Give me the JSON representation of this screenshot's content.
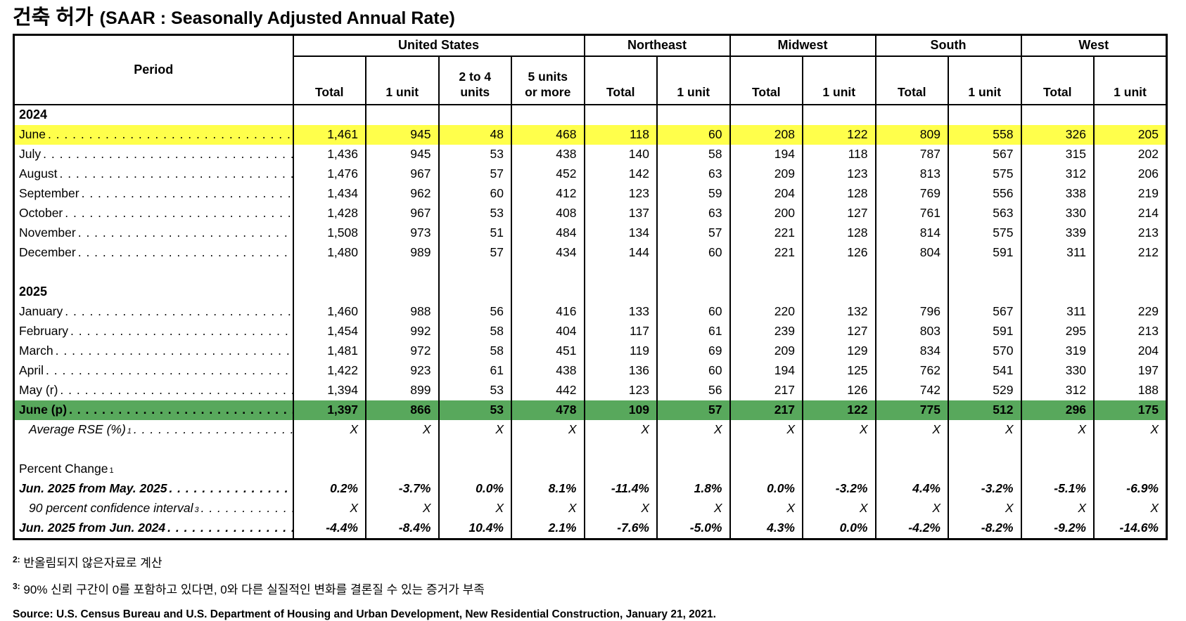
{
  "title": {
    "korean": "건축 허가",
    "english": "(SAAR : Seasonally Adjusted Annual Rate)"
  },
  "colors": {
    "yellow": "#FFFF4B",
    "green": "#58A85C"
  },
  "table": {
    "period_header": "Period",
    "groups": [
      {
        "label": "United States",
        "cols": [
          "Total",
          "1 unit",
          "2 to 4\nunits",
          "5 units\nor more"
        ]
      },
      {
        "label": "Northeast",
        "cols": [
          "Total",
          "1 unit"
        ]
      },
      {
        "label": "Midwest",
        "cols": [
          "Total",
          "1 unit"
        ]
      },
      {
        "label": "South",
        "cols": [
          "Total",
          "1 unit"
        ]
      },
      {
        "label": "West",
        "cols": [
          "Total",
          "1 unit"
        ]
      }
    ],
    "rows": [
      {
        "label": "2024",
        "style": "year",
        "leader": false,
        "values": null
      },
      {
        "label": "June",
        "style": "month",
        "leader": true,
        "highlight": "yellow",
        "values": [
          "1,461",
          "945",
          "48",
          "468",
          "118",
          "60",
          "208",
          "122",
          "809",
          "558",
          "326",
          "205"
        ]
      },
      {
        "label": "July",
        "style": "month",
        "leader": true,
        "values": [
          "1,436",
          "945",
          "53",
          "438",
          "140",
          "58",
          "194",
          "118",
          "787",
          "567",
          "315",
          "202"
        ]
      },
      {
        "label": "August",
        "style": "month",
        "leader": true,
        "values": [
          "1,476",
          "967",
          "57",
          "452",
          "142",
          "63",
          "209",
          "123",
          "813",
          "575",
          "312",
          "206"
        ]
      },
      {
        "label": "September",
        "style": "month",
        "leader": true,
        "values": [
          "1,434",
          "962",
          "60",
          "412",
          "123",
          "59",
          "204",
          "128",
          "769",
          "556",
          "338",
          "219"
        ]
      },
      {
        "label": "October",
        "style": "month",
        "leader": true,
        "values": [
          "1,428",
          "967",
          "53",
          "408",
          "137",
          "63",
          "200",
          "127",
          "761",
          "563",
          "330",
          "214"
        ]
      },
      {
        "label": "November",
        "style": "month",
        "leader": true,
        "values": [
          "1,508",
          "973",
          "51",
          "484",
          "134",
          "57",
          "221",
          "128",
          "814",
          "575",
          "339",
          "213"
        ]
      },
      {
        "label": "December",
        "style": "month",
        "leader": true,
        "values": [
          "1,480",
          "989",
          "57",
          "434",
          "144",
          "60",
          "221",
          "126",
          "804",
          "591",
          "311",
          "212"
        ]
      },
      {
        "label": "",
        "style": "blank",
        "leader": false,
        "values": null
      },
      {
        "label": "2025",
        "style": "year",
        "leader": false,
        "values": null
      },
      {
        "label": "January",
        "style": "month",
        "leader": true,
        "values": [
          "1,460",
          "988",
          "56",
          "416",
          "133",
          "60",
          "220",
          "132",
          "796",
          "567",
          "311",
          "229"
        ]
      },
      {
        "label": "February",
        "style": "month",
        "leader": true,
        "values": [
          "1,454",
          "992",
          "58",
          "404",
          "117",
          "61",
          "239",
          "127",
          "803",
          "591",
          "295",
          "213"
        ]
      },
      {
        "label": "March",
        "style": "month",
        "leader": true,
        "values": [
          "1,481",
          "972",
          "58",
          "451",
          "119",
          "69",
          "209",
          "129",
          "834",
          "570",
          "319",
          "204"
        ]
      },
      {
        "label": "April",
        "style": "month",
        "leader": true,
        "values": [
          "1,422",
          "923",
          "61",
          "438",
          "136",
          "60",
          "194",
          "125",
          "762",
          "541",
          "330",
          "197"
        ]
      },
      {
        "label": "May (r)",
        "style": "month",
        "leader": true,
        "values": [
          "1,394",
          "899",
          "53",
          "442",
          "123",
          "56",
          "217",
          "126",
          "742",
          "529",
          "312",
          "188"
        ]
      },
      {
        "label": "June (p)",
        "style": "green",
        "leader": true,
        "highlight": "green",
        "values": [
          "1,397",
          "866",
          "53",
          "478",
          "109",
          "57",
          "217",
          "122",
          "775",
          "512",
          "296",
          "175"
        ]
      },
      {
        "label": "Average RSE (%)",
        "sup": "1",
        "style": "italic",
        "indent": true,
        "leader": true,
        "values": [
          "X",
          "X",
          "X",
          "X",
          "X",
          "X",
          "X",
          "X",
          "X",
          "X",
          "X",
          "X"
        ]
      },
      {
        "label": "",
        "style": "blank",
        "leader": false,
        "values": null
      },
      {
        "label": "Percent Change",
        "sup": "1",
        "style": "plain",
        "leader": false,
        "values": null
      },
      {
        "label": "Jun. 2025 from May. 2025",
        "style": "bolditalic",
        "leader": true,
        "values": [
          "0.2%",
          "-3.7%",
          "0.0%",
          "8.1%",
          "-11.4%",
          "1.8%",
          "0.0%",
          "-3.2%",
          "4.4%",
          "-3.2%",
          "-5.1%",
          "-6.9%"
        ]
      },
      {
        "label": "90 percent confidence interval",
        "sup": "3",
        "style": "italic",
        "indent": true,
        "leader": true,
        "values": [
          "X",
          "X",
          "X",
          "X",
          "X",
          "X",
          "X",
          "X",
          "X",
          "X",
          "X",
          "X"
        ]
      },
      {
        "label": "Jun. 2025 from Jun. 2024",
        "style": "bolditalic",
        "leader": true,
        "values": [
          "-4.4%",
          "-8.4%",
          "10.4%",
          "2.1%",
          "-7.6%",
          "-5.0%",
          "4.3%",
          "0.0%",
          "-4.2%",
          "-8.2%",
          "-9.2%",
          "-14.6%"
        ]
      }
    ]
  },
  "footnotes": [
    {
      "sup": "2:",
      "text": "반올림되지 않은자료로 계산"
    },
    {
      "sup": "3:",
      "text": "90% 신뢰 구간이 0를 포함하고 있다면, 0와 다른 실질적인 변화를 결론질 수 있는 증거가 부족"
    }
  ],
  "source": "Source: U.S. Census Bureau and U.S. Department of Housing and Urban Development, New Residential Construction, January 21, 2021."
}
